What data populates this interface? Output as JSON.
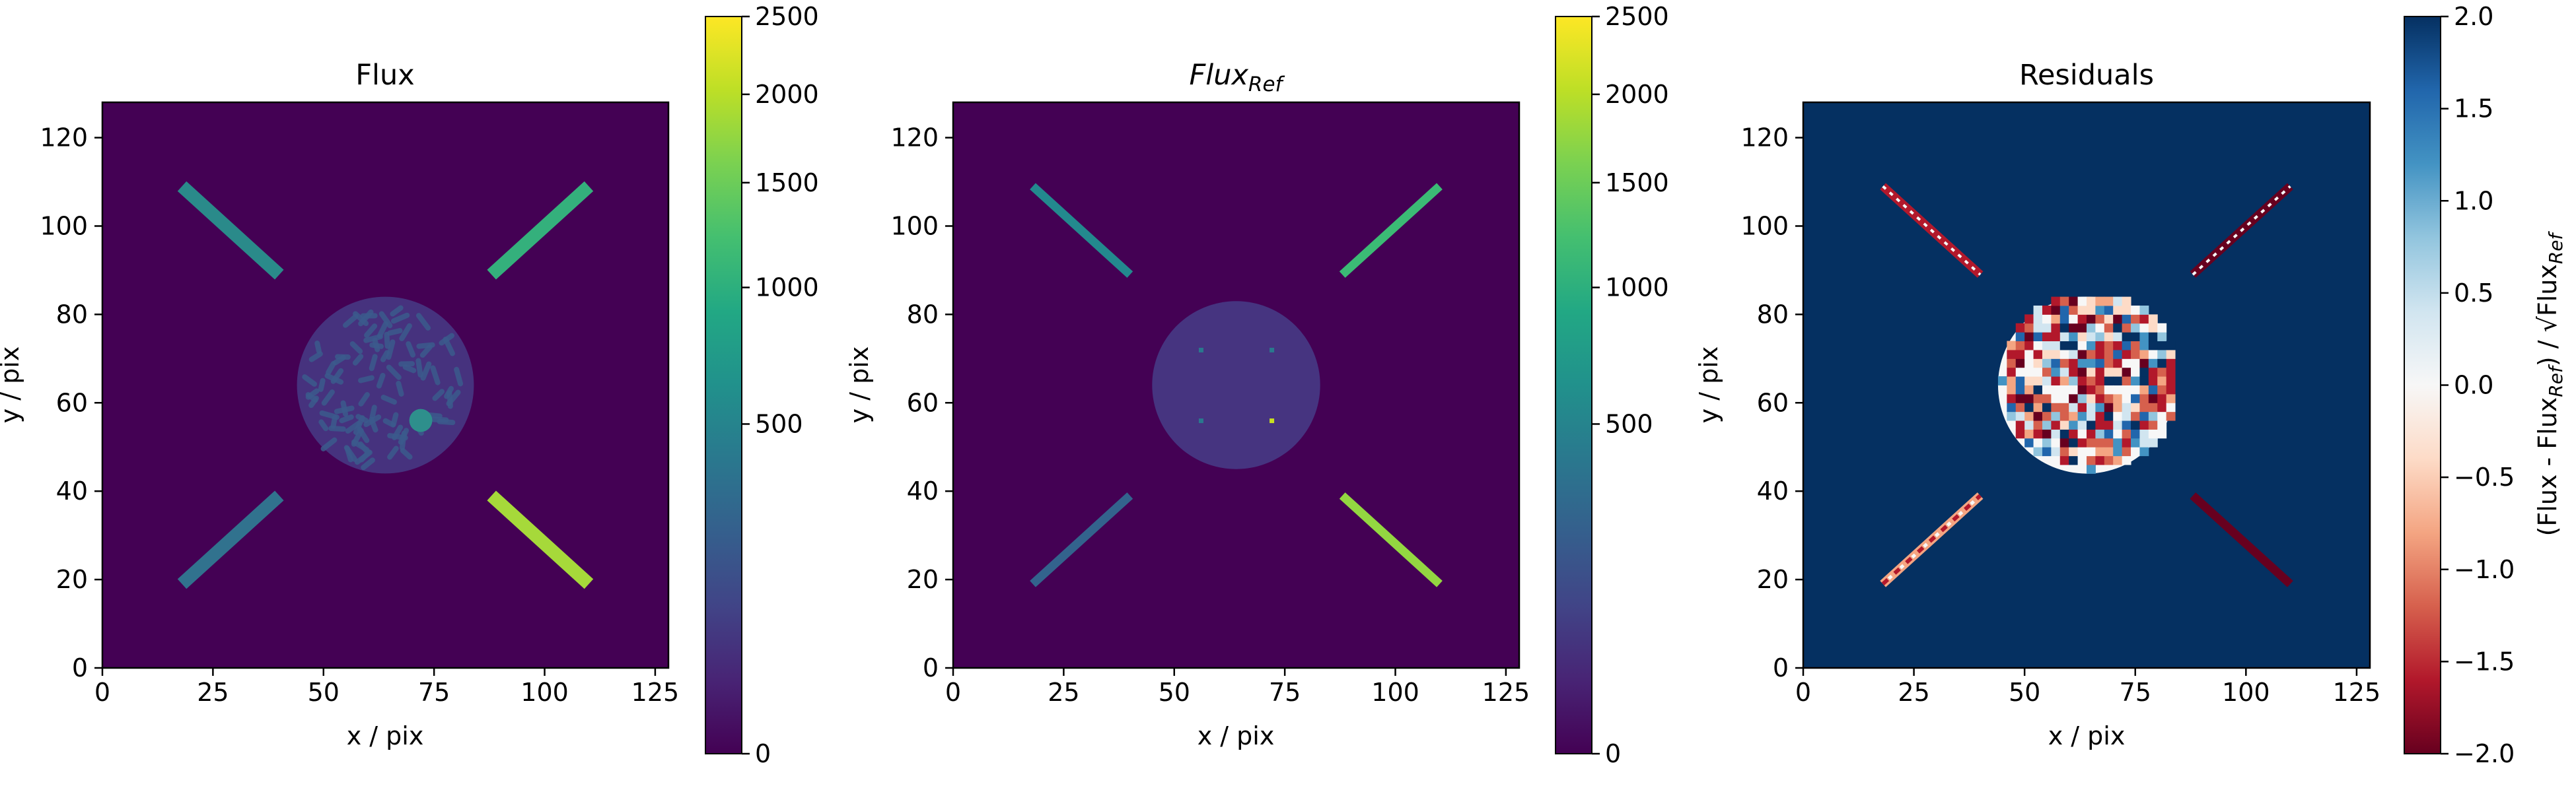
{
  "chart_data": [
    {
      "type": "heatmap",
      "title": "Flux",
      "xlabel": "x / pix",
      "ylabel": "y / pix",
      "xlim": [
        0,
        128
      ],
      "ylim": [
        0,
        128
      ],
      "xticks": [
        "0",
        "25",
        "50",
        "75",
        "100",
        "125"
      ],
      "yticks": [
        "0",
        "20",
        "40",
        "60",
        "80",
        "100",
        "120"
      ],
      "colormap": "viridis",
      "background_color": "#440154",
      "colorbar": {
        "scale": "sqrt",
        "range": [
          0,
          2500
        ],
        "ticks": [
          "0",
          "500",
          "1000",
          "1500",
          "2000",
          "2500"
        ]
      },
      "features": {
        "streaks": [
          {
            "from": [
              18,
              109
            ],
            "to": [
              40,
              89
            ],
            "color": "#2a8a8a"
          },
          {
            "from": [
              88,
              89
            ],
            "to": [
              110,
              109
            ],
            "color": "#34b07c"
          },
          {
            "from": [
              18,
              19
            ],
            "to": [
              40,
              39
            ],
            "color": "#31728e"
          },
          {
            "from": [
              88,
              39
            ],
            "to": [
              110,
              19
            ],
            "color": "#a6d93a"
          }
        ],
        "disk": {
          "center": [
            64,
            64
          ],
          "radius": 20,
          "color": "#46327e",
          "speckle": "#3b5a8c"
        },
        "blob": {
          "center": [
            72,
            56
          ],
          "radius": 2.6,
          "color": "#2e8f8c"
        }
      }
    },
    {
      "type": "heatmap",
      "title": "Flux",
      "title_sub": "Ref",
      "xlabel": "x / pix",
      "ylabel": "y / pix",
      "xlim": [
        0,
        128
      ],
      "ylim": [
        0,
        128
      ],
      "xticks": [
        "0",
        "25",
        "50",
        "75",
        "100",
        "125"
      ],
      "yticks": [
        "0",
        "20",
        "40",
        "60",
        "80",
        "100",
        "120"
      ],
      "colormap": "viridis",
      "background_color": "#440154",
      "colorbar": {
        "scale": "sqrt",
        "range": [
          0,
          2500
        ],
        "ticks": [
          "0",
          "500",
          "1000",
          "1500",
          "2000",
          "2500"
        ]
      },
      "features": {
        "streaks": [
          {
            "from": [
              18,
              109
            ],
            "to": [
              40,
              89
            ],
            "color": "#23898e"
          },
          {
            "from": [
              88,
              89
            ],
            "to": [
              110,
              109
            ],
            "color": "#3bbb75"
          },
          {
            "from": [
              18,
              19
            ],
            "to": [
              40,
              39
            ],
            "color": "#33638d"
          },
          {
            "from": [
              88,
              39
            ],
            "to": [
              110,
              19
            ],
            "color": "#93d741"
          }
        ],
        "disk": {
          "center": [
            64,
            64
          ],
          "radius": 19,
          "color": "#463480"
        },
        "dots": [
          {
            "pos": [
              56,
              72
            ],
            "color": "#2a788e"
          },
          {
            "pos": [
              72,
              72
            ],
            "color": "#2a788e"
          },
          {
            "pos": [
              56,
              56
            ],
            "color": "#2a788e"
          },
          {
            "pos": [
              72,
              56
            ],
            "color": "#c8e020"
          }
        ]
      }
    },
    {
      "type": "heatmap",
      "title": "Residuals",
      "xlabel": "x / pix",
      "ylabel": "y / pix",
      "xlim": [
        0,
        128
      ],
      "ylim": [
        0,
        128
      ],
      "xticks": [
        "0",
        "25",
        "50",
        "75",
        "100",
        "125"
      ],
      "yticks": [
        "0",
        "20",
        "40",
        "60",
        "80",
        "100",
        "120"
      ],
      "colormap": "RdBu",
      "background_color": "#053061",
      "colorbar": {
        "scale": "linear",
        "range": [
          -2.0,
          2.0
        ],
        "ticks": [
          "−2.0",
          "−1.5",
          "−1.0",
          "−0.5",
          "0.0",
          "0.5",
          "1.0",
          "1.5",
          "2.0"
        ],
        "label": {
          "a": "(Flux - Flux",
          "a_sub": "Ref",
          "b": ") / √Flux",
          "b_sub": "Ref"
        }
      },
      "features": {
        "streaks": [
          {
            "from": [
              18,
              109
            ],
            "to": [
              40,
              89
            ],
            "color": "#b2182b",
            "style": "dashed-white"
          },
          {
            "from": [
              88,
              89
            ],
            "to": [
              110,
              109
            ],
            "color": "#67001f",
            "style": "dashed-white"
          },
          {
            "from": [
              18,
              19
            ],
            "to": [
              40,
              39
            ],
            "color": "#f4a582",
            "style": "mixed"
          },
          {
            "from": [
              88,
              39
            ],
            "to": [
              110,
              19
            ],
            "color": "#67001f",
            "style": "solid"
          }
        ],
        "disk": {
          "center": [
            64,
            64
          ],
          "radius": 20,
          "pattern": "residual-noise"
        }
      }
    }
  ]
}
